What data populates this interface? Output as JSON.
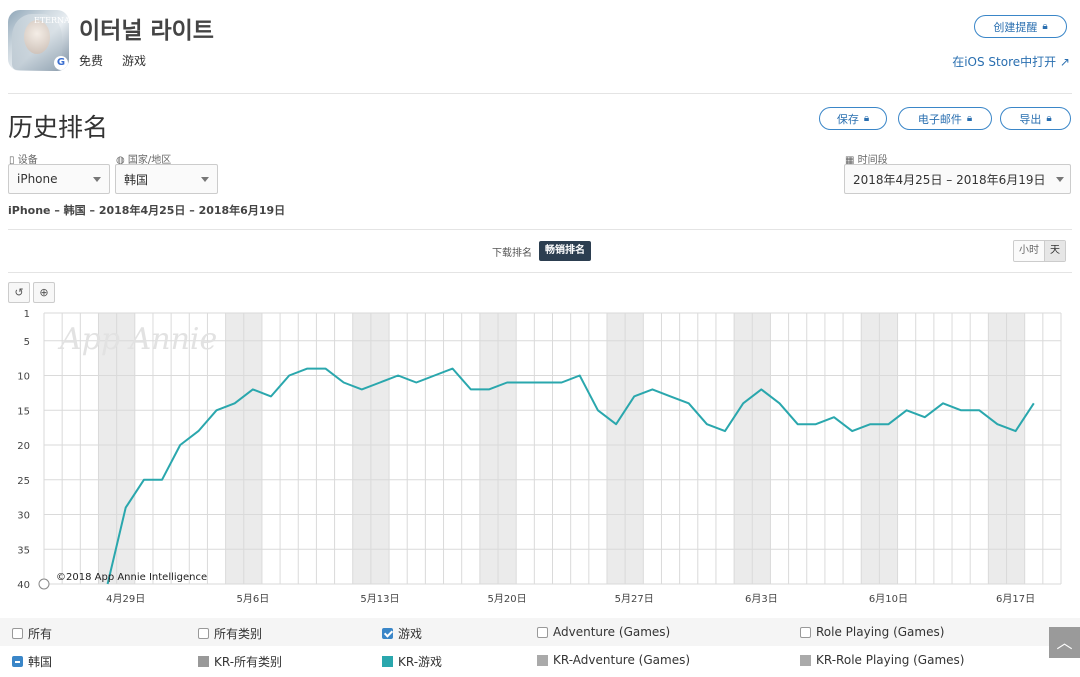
{
  "app": {
    "title": "이터널 라이트",
    "price": "免费",
    "category": "游戏",
    "icon_badge": "G",
    "icon_logo": "ETERNAL"
  },
  "header": {
    "create_alert": "创建提醒",
    "store_link": "在iOS Store中打开 ↗"
  },
  "section": {
    "title": "历史排名",
    "save": "保存",
    "email": "电子邮件",
    "export": "导出"
  },
  "filters": {
    "device_label": "设备",
    "device_value": "iPhone",
    "country_label": "国家/地区",
    "country_value": "韩国",
    "time_label": "时间段",
    "time_value": "2018年4月25日 – 2018年6月19日"
  },
  "summary": "iPhone – 韩国 – 2018年4月25日 – 2018年6月19日",
  "chart_tabs": {
    "downloads": "下载排名",
    "grossing": "畅销排名",
    "hour": "小时",
    "day": "天"
  },
  "tools": {
    "reset": "↺",
    "zoom": "⊕"
  },
  "chart_data": {
    "type": "line",
    "watermark": "App Annie",
    "copyright": "©2018 App Annie Intelligence",
    "y_inverted": true,
    "ylim": [
      1,
      40
    ],
    "y_ticks": [
      1,
      5,
      10,
      15,
      20,
      25,
      30,
      35,
      40
    ],
    "x_labels": [
      "4月29日",
      "5月6日",
      "5月13日",
      "5月20日",
      "5月27日",
      "6月3日",
      "6月10日",
      "6月17日"
    ],
    "grid": true,
    "series": [
      {
        "name": "KR-游戏",
        "color": "#2aa7ad",
        "x": [
          "2018-04-28",
          "2018-04-29",
          "2018-04-30",
          "2018-05-01",
          "2018-05-02",
          "2018-05-03",
          "2018-05-04",
          "2018-05-05",
          "2018-05-06",
          "2018-05-07",
          "2018-05-08",
          "2018-05-09",
          "2018-05-10",
          "2018-05-11",
          "2018-05-12",
          "2018-05-13",
          "2018-05-14",
          "2018-05-15",
          "2018-05-16",
          "2018-05-17",
          "2018-05-18",
          "2018-05-19",
          "2018-05-20",
          "2018-05-21",
          "2018-05-22",
          "2018-05-23",
          "2018-05-24",
          "2018-05-25",
          "2018-05-26",
          "2018-05-27",
          "2018-05-28",
          "2018-05-29",
          "2018-05-30",
          "2018-05-31",
          "2018-06-01",
          "2018-06-02",
          "2018-06-03",
          "2018-06-04",
          "2018-06-05",
          "2018-06-06",
          "2018-06-07",
          "2018-06-08",
          "2018-06-09",
          "2018-06-10",
          "2018-06-11",
          "2018-06-12",
          "2018-06-13",
          "2018-06-14",
          "2018-06-15",
          "2018-06-16",
          "2018-06-17",
          "2018-06-18"
        ],
        "values": [
          40,
          29,
          25,
          25,
          20,
          18,
          15,
          14,
          12,
          13,
          10,
          9,
          9,
          11,
          12,
          11,
          10,
          11,
          10,
          9,
          12,
          12,
          11,
          11,
          11,
          11,
          10,
          15,
          17,
          13,
          12,
          13,
          14,
          17,
          18,
          14,
          12,
          14,
          17,
          17,
          16,
          18,
          17,
          17,
          15,
          16,
          14,
          15,
          15,
          17,
          18,
          14
        ]
      }
    ]
  },
  "legend": {
    "row1": [
      "所有",
      "所有类别",
      "游戏",
      "Adventure (Games)",
      "Role Playing (Games)"
    ],
    "row2": [
      "韩国",
      "KR-所有类别",
      "KR-游戏",
      "KR-Adventure (Games)",
      "KR-Role Playing (Games)"
    ],
    "row2_colors": [
      "#3a86c8",
      "#999999",
      "#2aa7ad",
      "#aaaaaa",
      "#aaaaaa"
    ]
  }
}
